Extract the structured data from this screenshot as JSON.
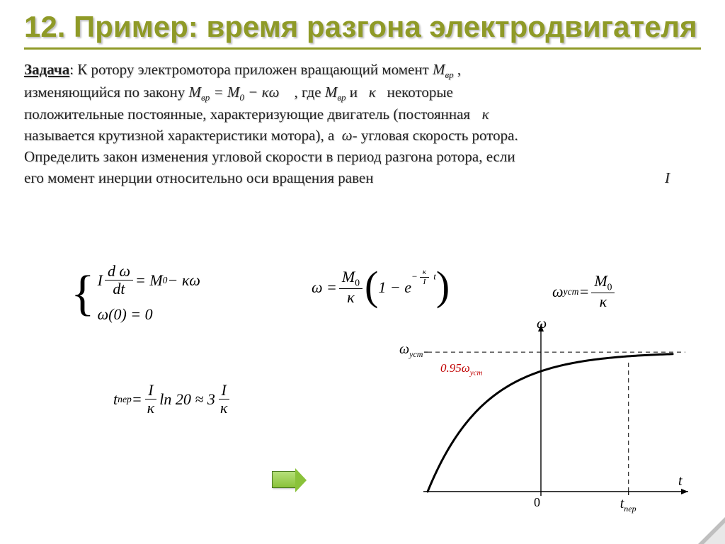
{
  "title": {
    "text": "12. Пример: время разгона электродвигателя",
    "color": "#8f9a27",
    "fontsize": 42
  },
  "rule_color": "#8f9a27",
  "body": {
    "task_label": "Задача",
    "line1a": ": К ротору электромотора приложен вращающий момент ",
    "m_vr": "M",
    "m_vr_sub": "вр",
    "line1b": ",",
    "line2a": "изменяющийся по закону ",
    "eq_law": "M",
    "eq_law_sub": "вр",
    "eq_law_rest": " = M",
    "eq_law_sub0": "0",
    "eq_law_tail": " − κω",
    "line2b": ", где ",
    "line2c": " и ",
    "kappa": "κ",
    "line2d": " некоторые",
    "line3": "положительные постоянные, характеризующие двигатель (постоянная ",
    "line4": "называется крутизной характеристики мотора), а ",
    "omega": "ω",
    "line4b": "- угловая скорость ротора.",
    "line5": "Определить закон изменения угловой скорости в период разгона ротора, если",
    "line6": "его момент инерции относительно оси вращения равен",
    "I": "I"
  },
  "equations": {
    "sys_top": {
      "I": "I",
      "dw": "d ω",
      "dt": "dt",
      "eq": " = M",
      "sub0": "0",
      "tail": " − κω"
    },
    "sys_bot": "ω(0) = 0",
    "sol": {
      "omega": "ω = ",
      "M0": "M",
      "sub0": "0",
      "kappa": "κ",
      "one": "1 − e",
      "exp_num": "κ",
      "exp_den": "I",
      "exp_t": " t"
    },
    "steady": {
      "omega": "ω",
      "sub": "уст",
      "eq": " = ",
      "M0": "M",
      "sub0": "0",
      "kappa": "κ"
    },
    "tper": {
      "t": "t",
      "sub": "пер",
      "eq": " = ",
      "I": "I",
      "kappa": "κ",
      "mid": " ln 20 ≈ 3",
      "I2": "I",
      "kappa2": "κ"
    }
  },
  "chart": {
    "type": "line",
    "xlim": [
      0,
      1
    ],
    "ylim": [
      0,
      1
    ],
    "curve_color": "#000000",
    "curve_width": 3,
    "asymptote_y": 0.92,
    "dash_color": "#000000",
    "x_dash": 0.82,
    "y_dash": 0.874,
    "axis_color": "#000000",
    "bg": "#ffffff",
    "labels": {
      "omega": "ω",
      "omega_ust": "ω",
      "omega_ust_sub": "уст",
      "point95": "0.95ω",
      "point95_sub": "уст",
      "t": "t",
      "zero": "0",
      "tper": "t",
      "tper_sub": "пер"
    },
    "annot_color": "#c00000"
  }
}
